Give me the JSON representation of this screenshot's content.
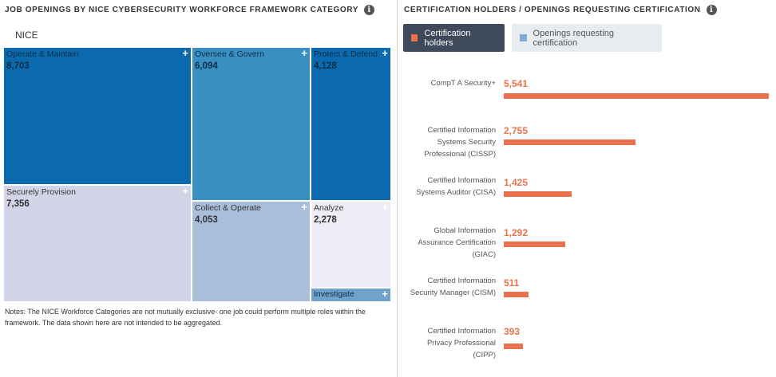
{
  "left_panel": {
    "title": "JOB OPENINGS BY NICE CYBERSECURITY WORKFORCE FRAMEWORK CATEGORY",
    "info_icon": "info-icon",
    "root_label": "NICE",
    "notes": "Notes: The NICE Workforce Categories are not mutually exclusive- one job could perform multiple roles within the framework. The data shown here are not intended to be aggregated."
  },
  "right_panel": {
    "title": "CERTIFICATION HOLDERS / OPENINGS REQUESTING CERTIFICATION",
    "info_icon": "info-icon",
    "legend": [
      {
        "label": "Certification holders",
        "color": "#e9724c",
        "active": true
      },
      {
        "label": "Openings requesting certification",
        "color": "#82a9cf",
        "active": false
      }
    ]
  },
  "chart_data": [
    {
      "type": "treemap",
      "title": "JOB OPENINGS BY NICE CYBERSECURITY WORKFORCE FRAMEWORK CATEGORY",
      "root": "NICE",
      "items": [
        {
          "name": "Operate & Maintain",
          "value": 8703,
          "value_label": "8,703",
          "color": "#0b6aad",
          "style": "dark"
        },
        {
          "name": "Securely Provision",
          "value": 7356,
          "value_label": "7,356",
          "color": "#d3d4e8",
          "style": "light"
        },
        {
          "name": "Oversee & Govern",
          "value": 6094,
          "value_label": "6,094",
          "color": "#3a8fc2",
          "style": "dark"
        },
        {
          "name": "Protect & Defend",
          "value": 4128,
          "value_label": "4,128",
          "color": "#0b6aad",
          "style": "dark"
        },
        {
          "name": "Collect & Operate",
          "value": 4053,
          "value_label": "4,053",
          "color": "#a9bedb",
          "style": "light"
        },
        {
          "name": "Analyze",
          "value": 2278,
          "value_label": "2,278",
          "color": "#eeedf5",
          "style": "light"
        },
        {
          "name": "Investigate",
          "value": null,
          "value_label": "",
          "color": "#6fa3cc",
          "style": "dark"
        }
      ]
    },
    {
      "type": "bar",
      "orientation": "horizontal",
      "title": "CERTIFICATION HOLDERS / OPENINGS REQUESTING CERTIFICATION",
      "categories": [
        [
          "CompT A Security+"
        ],
        [
          "Certified Information",
          "Systems Security",
          "Professional (CISSP)"
        ],
        [
          "Certified Information",
          "Systems Auditor (CISA)"
        ],
        [
          "Global Information",
          "Assurance Certification",
          "(GIAC)"
        ],
        [
          "Certified Information",
          "Security Manager (CISM)"
        ],
        [
          "Certified Information",
          "Privacy Professional",
          "(CIPP)"
        ]
      ],
      "series": [
        {
          "name": "Certification holders",
          "values": [
            5541,
            2755,
            1425,
            1292,
            511,
            393
          ],
          "labels": [
            "5,541",
            "2,755",
            "1,425",
            "1,292",
            "511",
            "393"
          ],
          "color": "#e9724c"
        }
      ],
      "xlim": [
        0,
        5541
      ]
    }
  ]
}
